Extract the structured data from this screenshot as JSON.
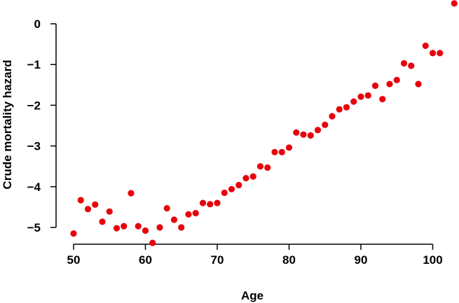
{
  "chart_data": {
    "type": "scatter",
    "title": "",
    "xlabel": "Age",
    "ylabel": "Crude mortality hazard",
    "xlim": [
      50,
      103
    ],
    "ylim": [
      -5.4,
      0.5
    ],
    "xticks": [
      50,
      60,
      70,
      80,
      90,
      100
    ],
    "yticks": [
      0,
      -1,
      -2,
      -3,
      -4,
      -5
    ],
    "xtick_labels": [
      "50",
      "60",
      "70",
      "80",
      "90",
      "100"
    ],
    "ytick_labels": [
      "0",
      "−1",
      "−2",
      "−3",
      "−4",
      "−5"
    ],
    "grid": false,
    "legend": "none",
    "point_color": "#e8000b",
    "series": [
      {
        "points": [
          [
            50,
            -5.15
          ],
          [
            51,
            -4.33
          ],
          [
            52,
            -4.55
          ],
          [
            53,
            -4.44
          ],
          [
            54,
            -4.86
          ],
          [
            55,
            -4.61
          ],
          [
            56,
            -5.02
          ],
          [
            57,
            -4.97
          ],
          [
            58,
            -4.16
          ],
          [
            59,
            -4.97
          ],
          [
            60,
            -5.08
          ],
          [
            61,
            -5.38
          ],
          [
            62,
            -5.0
          ],
          [
            63,
            -4.53
          ],
          [
            64,
            -4.81
          ],
          [
            65,
            -5.0
          ],
          [
            66,
            -4.68
          ],
          [
            67,
            -4.65
          ],
          [
            68,
            -4.4
          ],
          [
            69,
            -4.43
          ],
          [
            70,
            -4.4
          ],
          [
            71,
            -4.15
          ],
          [
            72,
            -4.06
          ],
          [
            73,
            -3.96
          ],
          [
            74,
            -3.79
          ],
          [
            75,
            -3.75
          ],
          [
            76,
            -3.5
          ],
          [
            77,
            -3.53
          ],
          [
            78,
            -3.15
          ],
          [
            79,
            -3.15
          ],
          [
            80,
            -3.04
          ],
          [
            81,
            -2.67
          ],
          [
            82,
            -2.72
          ],
          [
            83,
            -2.74
          ],
          [
            84,
            -2.61
          ],
          [
            85,
            -2.48
          ],
          [
            86,
            -2.27
          ],
          [
            87,
            -2.1
          ],
          [
            88,
            -2.05
          ],
          [
            89,
            -1.91
          ],
          [
            90,
            -1.79
          ],
          [
            91,
            -1.76
          ],
          [
            92,
            -1.52
          ],
          [
            93,
            -1.85
          ],
          [
            94,
            -1.48
          ],
          [
            95,
            -1.38
          ],
          [
            96,
            -0.97
          ],
          [
            97,
            -1.03
          ],
          [
            98,
            -1.48
          ],
          [
            99,
            -0.54
          ],
          [
            100,
            -0.72
          ],
          [
            101,
            -0.72
          ],
          [
            103,
            0.5
          ]
        ]
      }
    ]
  }
}
